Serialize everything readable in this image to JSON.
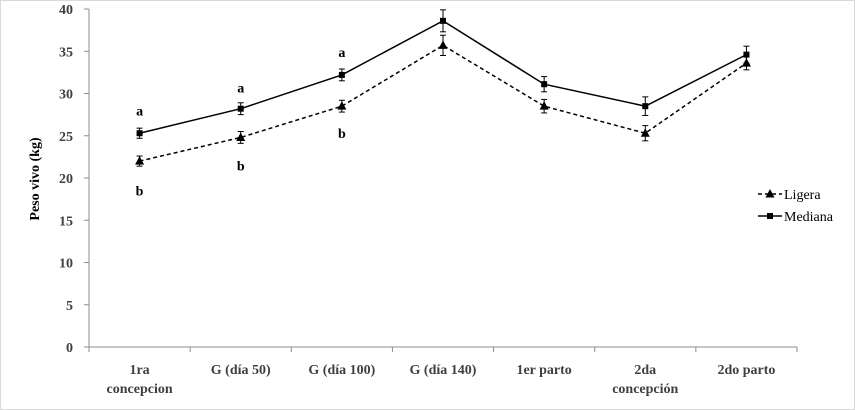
{
  "chart_data": {
    "type": "line",
    "title": "",
    "xlabel": "",
    "ylabel": "Peso vivo (kg)",
    "ylim": [
      0,
      40
    ],
    "yticks": [
      0,
      5,
      10,
      15,
      20,
      25,
      30,
      35,
      40
    ],
    "grid": false,
    "legend_position": "right",
    "categories": [
      [
        "1ra",
        "concepcion"
      ],
      [
        "G (día 50)"
      ],
      [
        "G (día 100)"
      ],
      [
        "G (día 140)"
      ],
      [
        "1er parto"
      ],
      [
        "2da",
        "concepción"
      ],
      [
        "2do parto"
      ]
    ],
    "series": [
      {
        "name": "Ligera",
        "values": [
          22.0,
          24.8,
          28.5,
          35.7,
          28.5,
          25.3,
          33.6
        ],
        "errors": [
          0.6,
          0.7,
          0.7,
          1.2,
          0.8,
          0.9,
          0.8
        ],
        "line_style": "dashed",
        "marker": "triangle",
        "color": "#000000"
      },
      {
        "name": "Mediana",
        "values": [
          25.3,
          28.2,
          32.2,
          38.6,
          31.1,
          28.5,
          34.6
        ],
        "errors": [
          0.6,
          0.7,
          0.7,
          1.3,
          0.9,
          1.1,
          1.0
        ],
        "line_style": "solid",
        "marker": "square",
        "color": "#000000"
      }
    ],
    "annotations": [
      {
        "text": "a",
        "category_index": 0,
        "y": 28.0
      },
      {
        "text": "b",
        "category_index": 0,
        "y": 18.5
      },
      {
        "text": "a",
        "category_index": 1,
        "y": 30.7
      },
      {
        "text": "b",
        "category_index": 1,
        "y": 21.5
      },
      {
        "text": "a",
        "category_index": 2,
        "y": 34.9
      },
      {
        "text": "b",
        "category_index": 2,
        "y": 25.3
      }
    ]
  }
}
